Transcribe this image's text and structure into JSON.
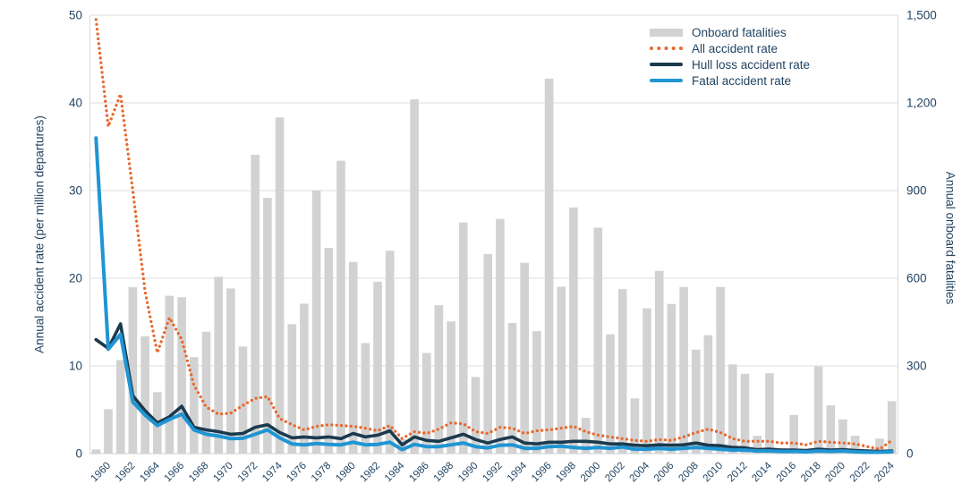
{
  "chart_data": {
    "type": "combo-bar-line",
    "x": [
      1959,
      1960,
      1961,
      1962,
      1963,
      1964,
      1965,
      1966,
      1967,
      1968,
      1969,
      1970,
      1971,
      1972,
      1973,
      1974,
      1975,
      1976,
      1977,
      1978,
      1979,
      1980,
      1981,
      1982,
      1983,
      1984,
      1985,
      1986,
      1987,
      1988,
      1989,
      1990,
      1991,
      1992,
      1993,
      1994,
      1995,
      1996,
      1997,
      1998,
      1999,
      2000,
      2001,
      2002,
      2003,
      2004,
      2005,
      2006,
      2007,
      2008,
      2009,
      2010,
      2011,
      2012,
      2013,
      2014,
      2015,
      2016,
      2017,
      2018,
      2019,
      2020,
      2021,
      2022,
      2023,
      2024
    ],
    "series": [
      {
        "name": "Onboard fatalities",
        "type": "bar",
        "axis": "right",
        "color": "#d2d2d2",
        "values": [
          14,
          152,
          320,
          569,
          401,
          210,
          540,
          535,
          330,
          417,
          605,
          565,
          366,
          1022,
          875,
          1150,
          443,
          513,
          900,
          704,
          1002,
          656,
          378,
          588,
          694,
          50,
          1212,
          344,
          508,
          452,
          791,
          262,
          683,
          803,
          447,
          653,
          419,
          1283,
          571,
          842,
          122,
          773,
          408,
          563,
          189,
          497,
          625,
          512,
          570,
          356,
          405,
          570,
          305,
          273,
          61,
          275,
          18,
          132,
          13,
          298,
          165,
          117,
          61,
          12,
          51,
          179
        ]
      },
      {
        "name": "All accident rate",
        "type": "dotted-line",
        "axis": "left",
        "color": "#e6692e",
        "values": [
          49.5,
          37.3,
          41.0,
          30.0,
          18.5,
          11.5,
          15.5,
          13.0,
          7.8,
          5.3,
          4.5,
          4.6,
          5.5,
          6.3,
          6.5,
          4.0,
          3.3,
          2.7,
          3.1,
          3.3,
          3.2,
          3.1,
          2.9,
          2.6,
          3.2,
          1.7,
          2.5,
          2.3,
          2.8,
          3.5,
          3.4,
          2.5,
          2.3,
          3.0,
          2.9,
          2.3,
          2.6,
          2.7,
          2.9,
          3.1,
          2.5,
          2.1,
          1.9,
          1.7,
          1.5,
          1.4,
          1.6,
          1.5,
          1.9,
          2.4,
          2.8,
          2.4,
          1.7,
          1.4,
          1.4,
          1.4,
          1.2,
          1.2,
          1.0,
          1.4,
          1.3,
          1.2,
          1.1,
          0.8,
          0.5,
          1.5
        ]
      },
      {
        "name": "Hull loss accident rate",
        "type": "line",
        "axis": "left",
        "color": "#1b3a4e",
        "values": [
          13.0,
          12.0,
          14.8,
          6.6,
          4.9,
          3.5,
          4.2,
          5.4,
          3.0,
          2.7,
          2.5,
          2.2,
          2.3,
          3.0,
          3.3,
          2.4,
          1.8,
          1.9,
          1.8,
          1.9,
          1.7,
          2.3,
          1.9,
          2.1,
          2.6,
          1.0,
          1.9,
          1.5,
          1.4,
          1.8,
          2.2,
          1.6,
          1.2,
          1.6,
          1.9,
          1.2,
          1.1,
          1.3,
          1.3,
          1.4,
          1.4,
          1.3,
          1.1,
          1.1,
          0.95,
          0.9,
          1.0,
          0.95,
          1.0,
          1.2,
          0.95,
          0.9,
          0.7,
          0.65,
          0.45,
          0.5,
          0.4,
          0.4,
          0.35,
          0.5,
          0.4,
          0.45,
          0.35,
          0.3,
          0.25,
          0.3
        ]
      },
      {
        "name": "Fatal accident rate",
        "type": "line",
        "axis": "left",
        "color": "#2095d3",
        "values": [
          36.0,
          11.9,
          13.6,
          5.9,
          4.4,
          3.2,
          3.9,
          4.5,
          2.7,
          2.2,
          2.0,
          1.7,
          1.75,
          2.2,
          2.7,
          1.8,
          1.1,
          1.0,
          1.15,
          1.05,
          1.0,
          1.3,
          1.0,
          1.05,
          1.3,
          0.45,
          1.05,
          0.8,
          0.8,
          1.0,
          1.2,
          0.8,
          0.65,
          0.95,
          1.0,
          0.6,
          0.6,
          0.8,
          0.85,
          0.7,
          0.6,
          0.7,
          0.6,
          0.75,
          0.5,
          0.5,
          0.6,
          0.5,
          0.6,
          0.7,
          0.6,
          0.5,
          0.4,
          0.4,
          0.3,
          0.3,
          0.25,
          0.25,
          0.2,
          0.3,
          0.25,
          0.3,
          0.2,
          0.15,
          0.15,
          0.2
        ]
      }
    ],
    "left_axis": {
      "label": "Annual accident rate (per million departures)",
      "range": [
        0,
        50
      ],
      "ticks": [
        "0",
        "10",
        "20",
        "30",
        "40",
        "50"
      ]
    },
    "right_axis": {
      "label": "Annual onboard fatalities",
      "range": [
        0,
        1500
      ],
      "ticks": [
        "0",
        "300",
        "600",
        "900",
        "1,200",
        "1,500"
      ]
    },
    "x_axis": {
      "tick_labels": [
        "1960",
        "1962",
        "1964",
        "1966",
        "1968",
        "1970",
        "1972",
        "1974",
        "1976",
        "1978",
        "1980",
        "1982",
        "1984",
        "1986",
        "1988",
        "1990",
        "1992",
        "1994",
        "1996",
        "1998",
        "2000",
        "2002",
        "2004",
        "2006",
        "2008",
        "2010",
        "2012",
        "2014",
        "2016",
        "2018",
        "2020",
        "2022",
        "2024"
      ]
    },
    "grid": "horizontal",
    "legend_position": "top-right-inside",
    "colors": {
      "grid": "#dcdcdc",
      "axis_line": "#c7ccd1",
      "text": "#234563"
    }
  }
}
